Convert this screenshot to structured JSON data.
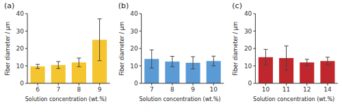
{
  "chart_data": [
    {
      "type": "bar",
      "title": "(a)",
      "categories": [
        "6",
        "7",
        "8",
        "9"
      ],
      "values": [
        9.7,
        10.5,
        12.0,
        25.0
      ],
      "errors": [
        1.2,
        2.0,
        2.5,
        12.0
      ],
      "color": "#F5C530",
      "xlabel": "Solution concentration (wt.%)",
      "ylabel": "Fiber diameter / μm",
      "ylim": [
        0,
        40
      ],
      "yticks": [
        0,
        10,
        20,
        30,
        40
      ],
      "grid": false
    },
    {
      "type": "bar",
      "title": "(b)",
      "categories": [
        "7",
        "8",
        "9",
        "10"
      ],
      "values": [
        14.0,
        12.5,
        11.8,
        12.8
      ],
      "errors": [
        5.2,
        3.0,
        3.5,
        2.8
      ],
      "color": "#5B9BD5",
      "xlabel": "Solution concentration (wt.%)",
      "ylabel": "Fiber diameter / μm",
      "ylim": [
        0,
        40
      ],
      "yticks": [
        0,
        10,
        20,
        30,
        40
      ],
      "grid": false
    },
    {
      "type": "bar",
      "title": "(c)",
      "categories": [
        "10",
        "11",
        "12",
        "14"
      ],
      "values": [
        15.0,
        14.5,
        12.0,
        12.8
      ],
      "errors": [
        4.5,
        7.0,
        1.8,
        2.2
      ],
      "color": "#C0272D",
      "xlabel": "Solution concentration (wt.%)",
      "ylabel": "Fiber diameter / μm",
      "ylim": [
        0,
        40
      ],
      "yticks": [
        0,
        10,
        20,
        30,
        40
      ],
      "grid": false
    }
  ]
}
